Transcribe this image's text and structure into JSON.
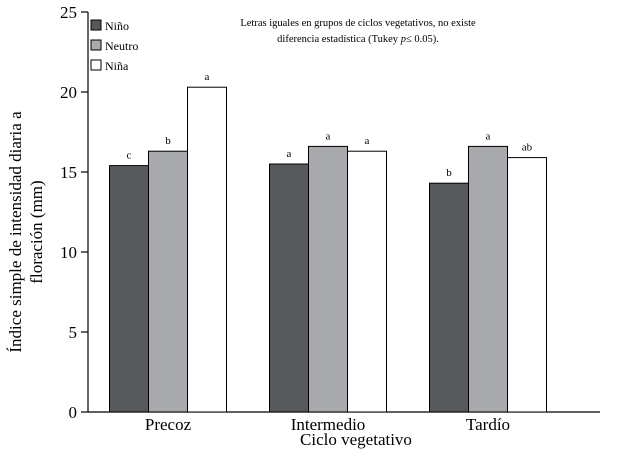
{
  "chart_data": {
    "type": "bar",
    "ylabel_line1": "Índice simple de intensidad diaria a",
    "ylabel_line2": "floración (mm)",
    "xlabel": "Ciclo vegetativo",
    "ylim": [
      0,
      25
    ],
    "yticks": [
      0,
      5,
      10,
      15,
      20,
      25
    ],
    "categories": [
      "Precoz",
      "Intermedio",
      "Tardío"
    ],
    "series": [
      {
        "name": "Niño",
        "color": "#58595b",
        "values": [
          15.4,
          15.5,
          14.3
        ],
        "letters": [
          "c",
          "a",
          "b"
        ]
      },
      {
        "name": "Neutro",
        "color": "#a7a9ac",
        "values": [
          16.3,
          16.6,
          16.6
        ],
        "letters": [
          "b",
          "a",
          "a"
        ]
      },
      {
        "name": "Niña",
        "color": "#ffffff",
        "values": [
          20.3,
          16.3,
          15.9
        ],
        "letters": [
          "a",
          "a",
          "ab"
        ]
      }
    ],
    "note_line1": "Letras iguales en grupos de ciclos vegetativos, no existe",
    "note_line2_pre": "diferencia estadística (Tukey  ",
    "note_line2_italic": "p",
    "note_line2_post": "≤ 0.05).",
    "legend_position": "top-left",
    "grid": false
  }
}
